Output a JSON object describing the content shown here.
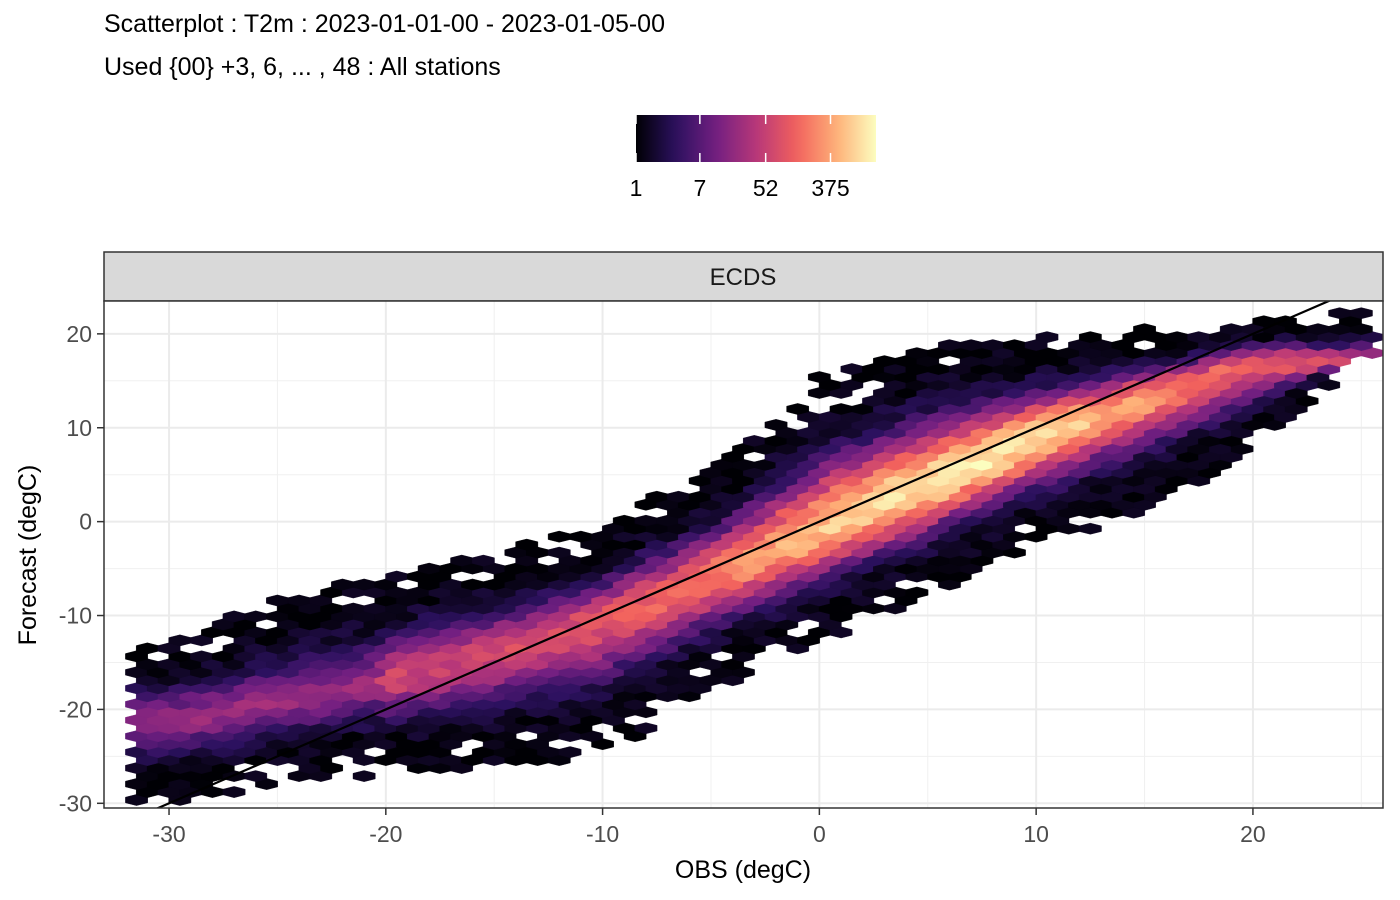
{
  "chart_data": {
    "type": "heatmap",
    "subtype": "hexbin-scatter",
    "title": "Scatterplot : T2m : 2023-01-01-00 - 2023-01-05-00",
    "subtitle": "Used {00} +3, 6, ... , 48 : All stations",
    "facet_label": "ECDS",
    "xlabel": "OBS (degC)",
    "ylabel": "Forecast (degC)",
    "xlim": [
      -33,
      26
    ],
    "ylim": [
      -30.5,
      23.5
    ],
    "x_ticks": [
      -30,
      -20,
      -10,
      0,
      10,
      20
    ],
    "x_tick_labels": [
      "-30",
      "-20",
      "-10",
      "0",
      "10",
      "20"
    ],
    "y_ticks": [
      -30,
      -20,
      -10,
      0,
      10,
      20
    ],
    "y_tick_labels": [
      "-30",
      "-20",
      "-10",
      "0",
      "10",
      "20"
    ],
    "grid": true,
    "legend": {
      "position": "top",
      "scale": "log",
      "min": 1,
      "max": 1500,
      "ticks": [
        1,
        7,
        52,
        375
      ],
      "tick_labels": [
        "1",
        "7",
        "52",
        "375"
      ],
      "colormap": [
        "#000004",
        "#2c115f",
        "#721f81",
        "#b73779",
        "#f1605d",
        "#feaf77",
        "#fcfdbf"
      ]
    },
    "reference_line": {
      "slope": 1,
      "intercept": 0,
      "color": "#000000"
    },
    "density_ridge": [
      {
        "x": -30,
        "y": -21
      },
      {
        "x": -25,
        "y": -19.5
      },
      {
        "x": -20,
        "y": -17
      },
      {
        "x": -15,
        "y": -14
      },
      {
        "x": -10,
        "y": -10.5
      },
      {
        "x": -5,
        "y": -6
      },
      {
        "x": 0,
        "y": -1
      },
      {
        "x": 5,
        "y": 4
      },
      {
        "x": 10,
        "y": 9
      },
      {
        "x": 15,
        "y": 13
      },
      {
        "x": 20,
        "y": 17
      }
    ],
    "extent": [
      {
        "x": -30,
        "lo": -29.5,
        "hi": -14
      },
      {
        "x": -25,
        "lo": -27,
        "hi": -9
      },
      {
        "x": -20,
        "lo": -26,
        "hi": -6
      },
      {
        "x": -15,
        "lo": -25.5,
        "hi": -4
      },
      {
        "x": -10,
        "lo": -24.5,
        "hi": -1
      },
      {
        "x": -5,
        "lo": -17,
        "hi": 5
      },
      {
        "x": 0,
        "lo": -12,
        "hi": 15
      },
      {
        "x": 5,
        "lo": -7,
        "hi": 18
      },
      {
        "x": 10,
        "lo": -2,
        "hi": 19
      },
      {
        "x": 15,
        "lo": 2,
        "hi": 20
      },
      {
        "x": 20,
        "lo": 8,
        "hi": 21
      },
      {
        "x": 25,
        "lo": 18,
        "hi": 21.5
      }
    ]
  }
}
